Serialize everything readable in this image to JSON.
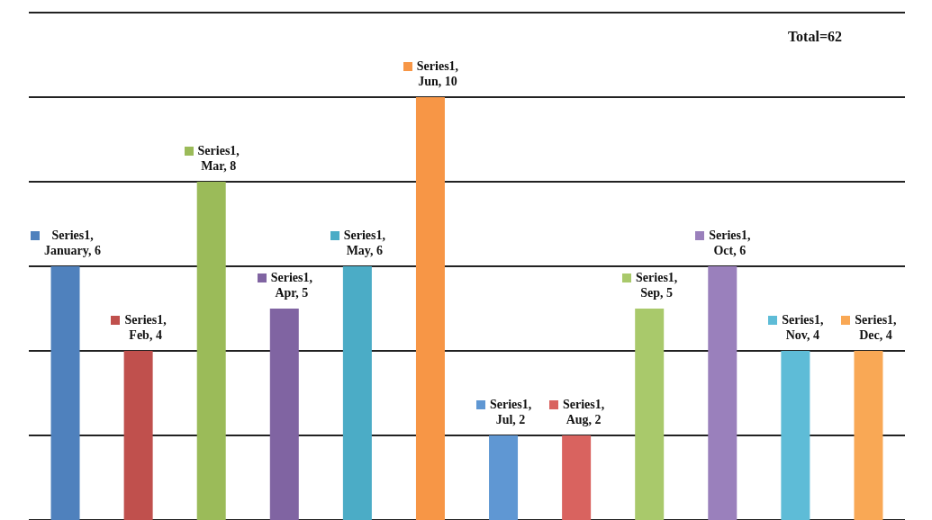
{
  "chart_data": {
    "type": "bar",
    "categories": [
      null,
      null,
      null,
      null,
      null,
      null,
      null,
      null,
      null,
      null,
      null,
      null
    ],
    "series": [
      {
        "values": [
          6,
          4,
          8,
          5,
          6,
          10,
          2,
          2,
          5,
          6,
          4,
          4
        ],
        "colors": [
          "#4f81bd",
          "#c0504d",
          "#9bbb59",
          "#8064a2",
          "#4bacc6",
          "#f79646",
          "#5f97d3",
          "#d9635f",
          "#a9c96b",
          "#9a80bc",
          "#5ebcd7",
          "#f9a855"
        ],
        "value_labels": [
          "Series1, January, 6",
          "Series1, Feb, 4",
          "Series1, Mar, 8",
          "Series1, Apr, 5",
          "Series1, May, 6",
          "Series1, Jun, 10",
          "Series1, Jul, 2",
          "Series1, Aug, 2",
          "Series1, Sep, 5",
          "Series1, Oct, 6",
          "Series1, Nov, 4",
          "Series1, Dec, 4"
        ]
      }
    ],
    "ylim": [
      0,
      12
    ],
    "yticks": [
      {
        "value": 0,
        "label": null
      },
      {
        "value": 2,
        "label": null
      },
      {
        "value": 4,
        "label": null
      },
      {
        "value": 6,
        "label": null
      },
      {
        "value": 8,
        "label": null
      },
      {
        "value": 10,
        "label": null
      },
      {
        "value": 12,
        "label": null
      }
    ],
    "grid": "y",
    "tick_labels": false,
    "annotations": [
      "Total=62"
    ]
  }
}
